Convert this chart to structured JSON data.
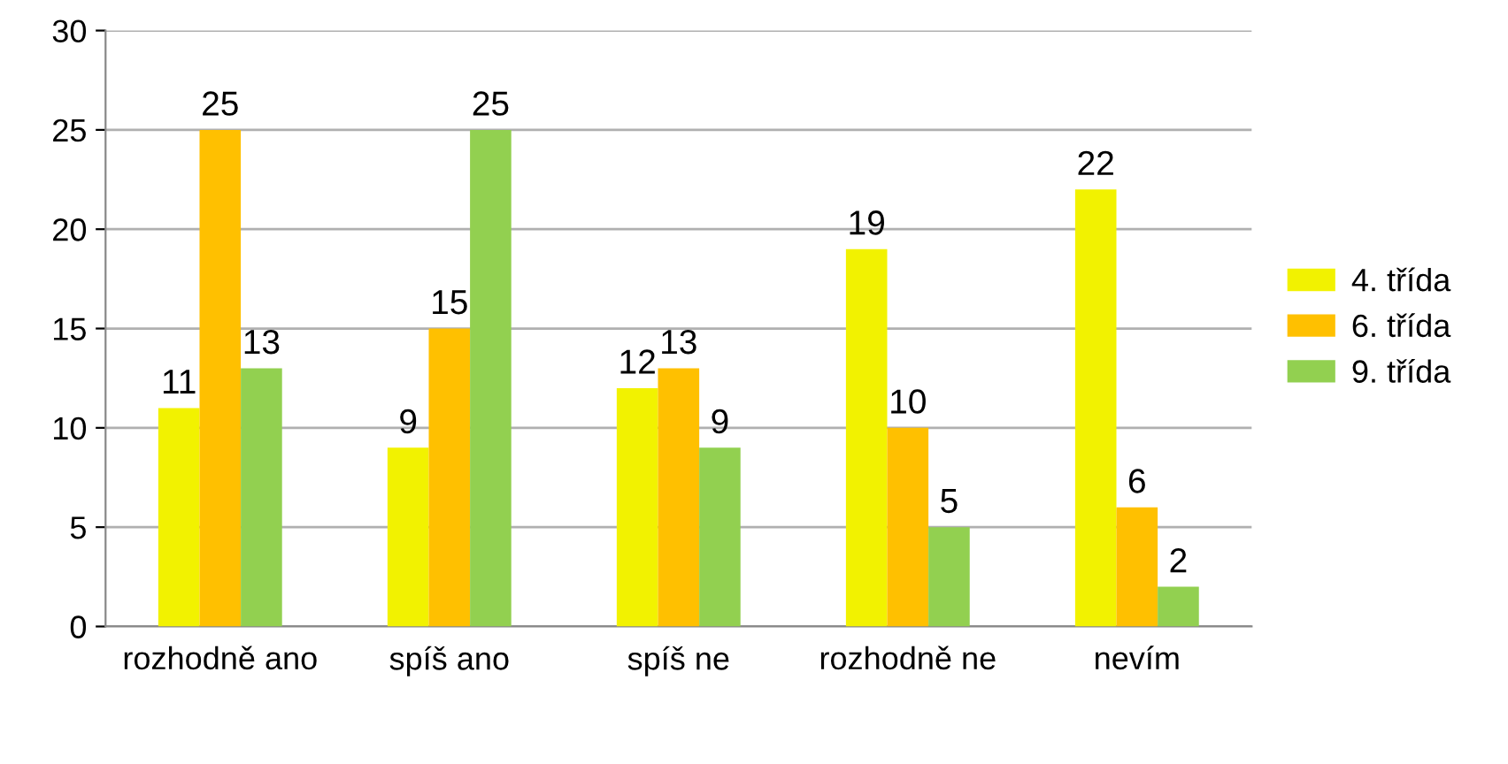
{
  "chart_data": {
    "type": "bar",
    "categories": [
      "rozhodně ano",
      "spíš ano",
      "spíš ne",
      "rozhodně ne",
      "nevím"
    ],
    "series": [
      {
        "name": "4. třída",
        "color": "#f2f200",
        "values": [
          11,
          9,
          12,
          19,
          22
        ]
      },
      {
        "name": "6. třída",
        "color": "#ffc000",
        "values": [
          25,
          15,
          13,
          10,
          6
        ]
      },
      {
        "name": "9. třída",
        "color": "#92d050",
        "values": [
          13,
          25,
          9,
          5,
          2
        ]
      }
    ],
    "ylim": [
      0,
      30
    ],
    "yticks": [
      0,
      5,
      10,
      15,
      20,
      25,
      30
    ],
    "grid": "y",
    "legend": "right",
    "data_labels": true
  }
}
